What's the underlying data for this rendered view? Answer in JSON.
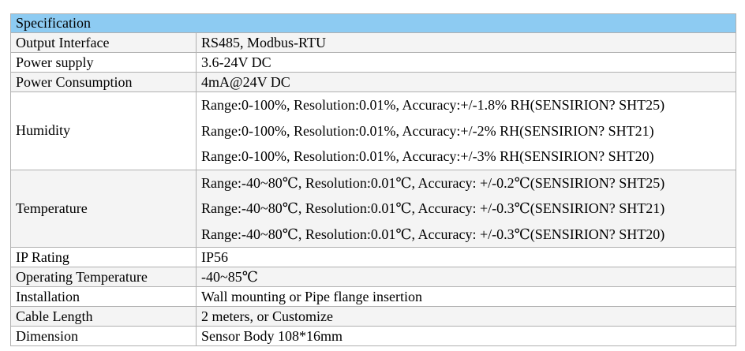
{
  "table": {
    "title": "Specification",
    "colors": {
      "header_bg": "#8dcbf2",
      "row_alt_bg": "#f4f4f4",
      "border": "#b0b0b0",
      "text": "#000000"
    },
    "rows": [
      {
        "label": "Output Interface",
        "value": "RS485, Modbus-RTU"
      },
      {
        "label": "Power supply",
        "value": "3.6-24V DC"
      },
      {
        "label": "Power Consumption",
        "value": "4mA@24V DC"
      },
      {
        "label": "Humidity",
        "values": [
          "Range:0-100%, Resolution:0.01%, Accuracy:+/-1.8% RH(SENSIRION? SHT25)",
          "Range:0-100%, Resolution:0.01%, Accuracy:+/-2% RH(SENSIRION? SHT21)",
          "Range:0-100%, Resolution:0.01%, Accuracy:+/-3% RH(SENSIRION? SHT20)"
        ]
      },
      {
        "label": "Temperature",
        "values": [
          "Range:-40~80℃, Resolution:0.01℃, Accuracy: +/-0.2℃(SENSIRION? SHT25)",
          "Range:-40~80℃, Resolution:0.01℃, Accuracy: +/-0.3℃(SENSIRION? SHT21)",
          "Range:-40~80℃, Resolution:0.01℃, Accuracy: +/-0.3℃(SENSIRION? SHT20)"
        ]
      },
      {
        "label": "IP Rating",
        "value": "IP56"
      },
      {
        "label": "Operating Temperature",
        "value": "-40~85℃"
      },
      {
        "label": "Installation",
        "value": "Wall mounting or Pipe flange insertion"
      },
      {
        "label": "Cable Length",
        "value": "2 meters, or Customize"
      },
      {
        "label": "Dimension",
        "value": "Sensor Body 108*16mm"
      }
    ]
  }
}
